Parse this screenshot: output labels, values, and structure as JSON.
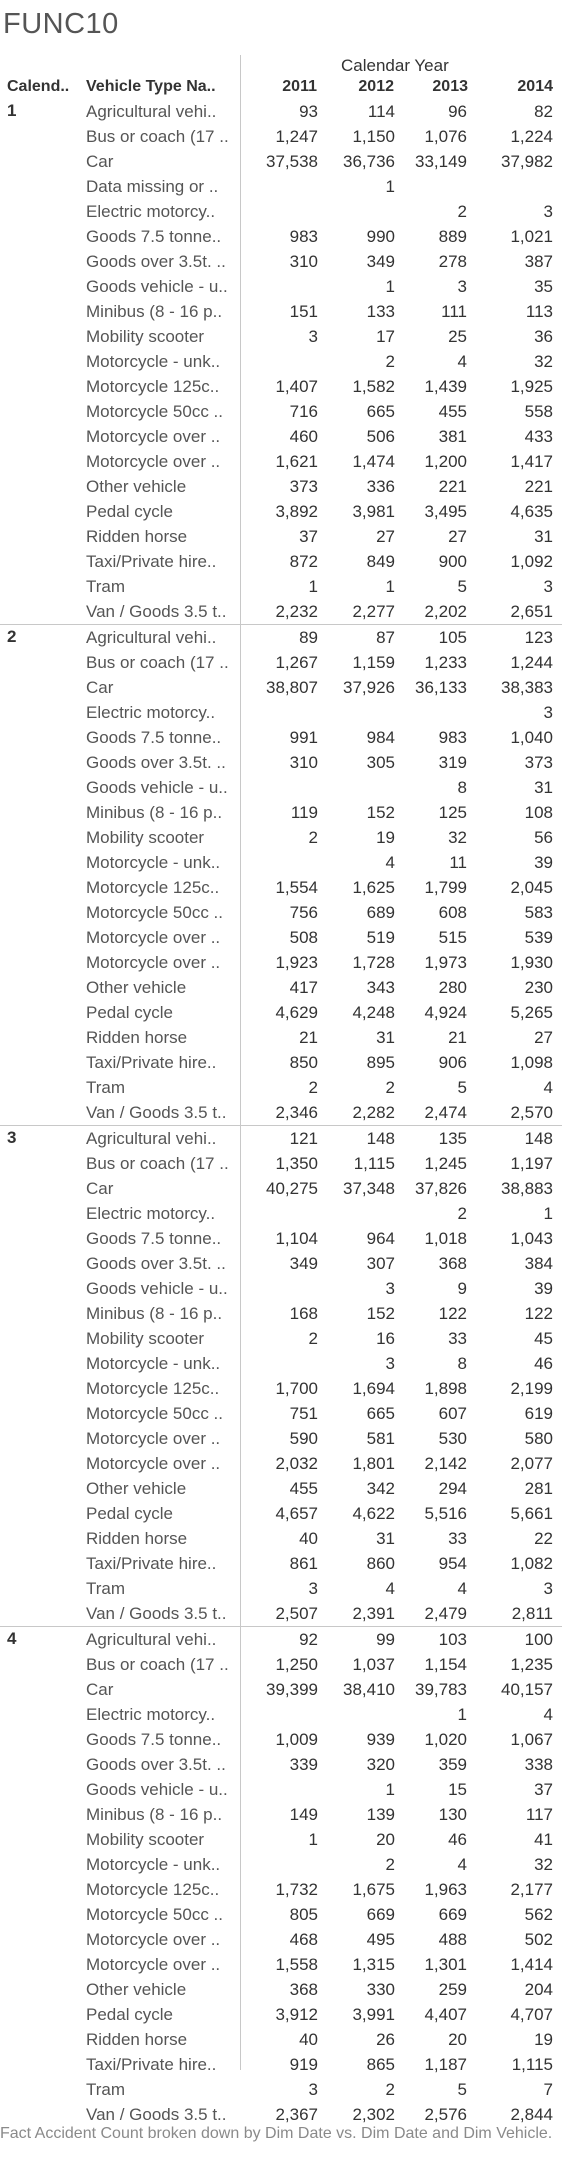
{
  "title": "FUNC10",
  "header": {
    "calendar_year": "Calendar Year",
    "calendar_col": "Calend..",
    "vehicle_col": "Vehicle Type Na..",
    "years": [
      "2011",
      "2012",
      "2013",
      "2014"
    ]
  },
  "groups": [
    {
      "label": "1",
      "rows": [
        {
          "type": "Agricultural vehi..",
          "values": [
            "93",
            "114",
            "96",
            "82"
          ]
        },
        {
          "type": "Bus or coach (17 ..",
          "values": [
            "1,247",
            "1,150",
            "1,076",
            "1,224"
          ]
        },
        {
          "type": "Car",
          "values": [
            "37,538",
            "36,736",
            "33,149",
            "37,982"
          ]
        },
        {
          "type": "Data missing or ..",
          "values": [
            "",
            "1",
            "",
            ""
          ]
        },
        {
          "type": "Electric motorcy..",
          "values": [
            "",
            "",
            "2",
            "3"
          ]
        },
        {
          "type": "Goods 7.5 tonne..",
          "values": [
            "983",
            "990",
            "889",
            "1,021"
          ]
        },
        {
          "type": "Goods over 3.5t. ..",
          "values": [
            "310",
            "349",
            "278",
            "387"
          ]
        },
        {
          "type": "Goods vehicle - u..",
          "values": [
            "",
            "1",
            "3",
            "35"
          ]
        },
        {
          "type": "Minibus (8 - 16 p..",
          "values": [
            "151",
            "133",
            "111",
            "113"
          ]
        },
        {
          "type": "Mobility scooter",
          "values": [
            "3",
            "17",
            "25",
            "36"
          ]
        },
        {
          "type": "Motorcycle - unk..",
          "values": [
            "",
            "2",
            "4",
            "32"
          ]
        },
        {
          "type": "Motorcycle 125c..",
          "values": [
            "1,407",
            "1,582",
            "1,439",
            "1,925"
          ]
        },
        {
          "type": "Motorcycle 50cc ..",
          "values": [
            "716",
            "665",
            "455",
            "558"
          ]
        },
        {
          "type": "Motorcycle over ..",
          "values": [
            "460",
            "506",
            "381",
            "433"
          ]
        },
        {
          "type": "Motorcycle over ..",
          "values": [
            "1,621",
            "1,474",
            "1,200",
            "1,417"
          ]
        },
        {
          "type": "Other vehicle",
          "values": [
            "373",
            "336",
            "221",
            "221"
          ]
        },
        {
          "type": "Pedal cycle",
          "values": [
            "3,892",
            "3,981",
            "3,495",
            "4,635"
          ]
        },
        {
          "type": "Ridden horse",
          "values": [
            "37",
            "27",
            "27",
            "31"
          ]
        },
        {
          "type": "Taxi/Private hire..",
          "values": [
            "872",
            "849",
            "900",
            "1,092"
          ]
        },
        {
          "type": "Tram",
          "values": [
            "1",
            "1",
            "5",
            "3"
          ]
        },
        {
          "type": "Van / Goods 3.5 t..",
          "values": [
            "2,232",
            "2,277",
            "2,202",
            "2,651"
          ]
        }
      ]
    },
    {
      "label": "2",
      "rows": [
        {
          "type": "Agricultural vehi..",
          "values": [
            "89",
            "87",
            "105",
            "123"
          ]
        },
        {
          "type": "Bus or coach (17 ..",
          "values": [
            "1,267",
            "1,159",
            "1,233",
            "1,244"
          ]
        },
        {
          "type": "Car",
          "values": [
            "38,807",
            "37,926",
            "36,133",
            "38,383"
          ]
        },
        {
          "type": "Electric motorcy..",
          "values": [
            "",
            "",
            "",
            "3"
          ]
        },
        {
          "type": "Goods 7.5 tonne..",
          "values": [
            "991",
            "984",
            "983",
            "1,040"
          ]
        },
        {
          "type": "Goods over 3.5t. ..",
          "values": [
            "310",
            "305",
            "319",
            "373"
          ]
        },
        {
          "type": "Goods vehicle - u..",
          "values": [
            "",
            "",
            "8",
            "31"
          ]
        },
        {
          "type": "Minibus (8 - 16 p..",
          "values": [
            "119",
            "152",
            "125",
            "108"
          ]
        },
        {
          "type": "Mobility scooter",
          "values": [
            "2",
            "19",
            "32",
            "56"
          ]
        },
        {
          "type": "Motorcycle - unk..",
          "values": [
            "",
            "4",
            "11",
            "39"
          ]
        },
        {
          "type": "Motorcycle 125c..",
          "values": [
            "1,554",
            "1,625",
            "1,799",
            "2,045"
          ]
        },
        {
          "type": "Motorcycle 50cc ..",
          "values": [
            "756",
            "689",
            "608",
            "583"
          ]
        },
        {
          "type": "Motorcycle over ..",
          "values": [
            "508",
            "519",
            "515",
            "539"
          ]
        },
        {
          "type": "Motorcycle over ..",
          "values": [
            "1,923",
            "1,728",
            "1,973",
            "1,930"
          ]
        },
        {
          "type": "Other vehicle",
          "values": [
            "417",
            "343",
            "280",
            "230"
          ]
        },
        {
          "type": "Pedal cycle",
          "values": [
            "4,629",
            "4,248",
            "4,924",
            "5,265"
          ]
        },
        {
          "type": "Ridden horse",
          "values": [
            "21",
            "31",
            "21",
            "27"
          ]
        },
        {
          "type": "Taxi/Private hire..",
          "values": [
            "850",
            "895",
            "906",
            "1,098"
          ]
        },
        {
          "type": "Tram",
          "values": [
            "2",
            "2",
            "5",
            "4"
          ]
        },
        {
          "type": "Van / Goods 3.5 t..",
          "values": [
            "2,346",
            "2,282",
            "2,474",
            "2,570"
          ]
        }
      ]
    },
    {
      "label": "3",
      "rows": [
        {
          "type": "Agricultural vehi..",
          "values": [
            "121",
            "148",
            "135",
            "148"
          ]
        },
        {
          "type": "Bus or coach (17 ..",
          "values": [
            "1,350",
            "1,115",
            "1,245",
            "1,197"
          ]
        },
        {
          "type": "Car",
          "values": [
            "40,275",
            "37,348",
            "37,826",
            "38,883"
          ]
        },
        {
          "type": "Electric motorcy..",
          "values": [
            "",
            "",
            "2",
            "1"
          ]
        },
        {
          "type": "Goods 7.5 tonne..",
          "values": [
            "1,104",
            "964",
            "1,018",
            "1,043"
          ]
        },
        {
          "type": "Goods over 3.5t. ..",
          "values": [
            "349",
            "307",
            "368",
            "384"
          ]
        },
        {
          "type": "Goods vehicle - u..",
          "values": [
            "",
            "3",
            "9",
            "39"
          ]
        },
        {
          "type": "Minibus (8 - 16 p..",
          "values": [
            "168",
            "152",
            "122",
            "122"
          ]
        },
        {
          "type": "Mobility scooter",
          "values": [
            "2",
            "16",
            "33",
            "45"
          ]
        },
        {
          "type": "Motorcycle - unk..",
          "values": [
            "",
            "3",
            "8",
            "46"
          ]
        },
        {
          "type": "Motorcycle 125c..",
          "values": [
            "1,700",
            "1,694",
            "1,898",
            "2,199"
          ]
        },
        {
          "type": "Motorcycle 50cc ..",
          "values": [
            "751",
            "665",
            "607",
            "619"
          ]
        },
        {
          "type": "Motorcycle over ..",
          "values": [
            "590",
            "581",
            "530",
            "580"
          ]
        },
        {
          "type": "Motorcycle over ..",
          "values": [
            "2,032",
            "1,801",
            "2,142",
            "2,077"
          ]
        },
        {
          "type": "Other vehicle",
          "values": [
            "455",
            "342",
            "294",
            "281"
          ]
        },
        {
          "type": "Pedal cycle",
          "values": [
            "4,657",
            "4,622",
            "5,516",
            "5,661"
          ]
        },
        {
          "type": "Ridden horse",
          "values": [
            "40",
            "31",
            "33",
            "22"
          ]
        },
        {
          "type": "Taxi/Private hire..",
          "values": [
            "861",
            "860",
            "954",
            "1,082"
          ]
        },
        {
          "type": "Tram",
          "values": [
            "3",
            "4",
            "4",
            "3"
          ]
        },
        {
          "type": "Van / Goods 3.5 t..",
          "values": [
            "2,507",
            "2,391",
            "2,479",
            "2,811"
          ]
        }
      ]
    },
    {
      "label": "4",
      "rows": [
        {
          "type": "Agricultural vehi..",
          "values": [
            "92",
            "99",
            "103",
            "100"
          ]
        },
        {
          "type": "Bus or coach (17 ..",
          "values": [
            "1,250",
            "1,037",
            "1,154",
            "1,235"
          ]
        },
        {
          "type": "Car",
          "values": [
            "39,399",
            "38,410",
            "39,783",
            "40,157"
          ]
        },
        {
          "type": "Electric motorcy..",
          "values": [
            "",
            "",
            "1",
            "4"
          ]
        },
        {
          "type": "Goods 7.5 tonne..",
          "values": [
            "1,009",
            "939",
            "1,020",
            "1,067"
          ]
        },
        {
          "type": "Goods over 3.5t. ..",
          "values": [
            "339",
            "320",
            "359",
            "338"
          ]
        },
        {
          "type": "Goods vehicle - u..",
          "values": [
            "",
            "1",
            "15",
            "37"
          ]
        },
        {
          "type": "Minibus (8 - 16 p..",
          "values": [
            "149",
            "139",
            "130",
            "117"
          ]
        },
        {
          "type": "Mobility scooter",
          "values": [
            "1",
            "20",
            "46",
            "41"
          ]
        },
        {
          "type": "Motorcycle - unk..",
          "values": [
            "",
            "2",
            "4",
            "32"
          ]
        },
        {
          "type": "Motorcycle 125c..",
          "values": [
            "1,732",
            "1,675",
            "1,963",
            "2,177"
          ]
        },
        {
          "type": "Motorcycle 50cc ..",
          "values": [
            "805",
            "669",
            "669",
            "562"
          ]
        },
        {
          "type": "Motorcycle over ..",
          "values": [
            "468",
            "495",
            "488",
            "502"
          ]
        },
        {
          "type": "Motorcycle over ..",
          "values": [
            "1,558",
            "1,315",
            "1,301",
            "1,414"
          ]
        },
        {
          "type": "Other vehicle",
          "values": [
            "368",
            "330",
            "259",
            "204"
          ]
        },
        {
          "type": "Pedal cycle",
          "values": [
            "3,912",
            "3,991",
            "4,407",
            "4,707"
          ]
        },
        {
          "type": "Ridden horse",
          "values": [
            "40",
            "26",
            "20",
            "19"
          ]
        },
        {
          "type": "Taxi/Private hire..",
          "values": [
            "919",
            "865",
            "1,187",
            "1,115"
          ]
        },
        {
          "type": "Tram",
          "values": [
            "3",
            "2",
            "5",
            "7"
          ]
        },
        {
          "type": "Van / Goods 3.5 t..",
          "values": [
            "2,367",
            "2,302",
            "2,576",
            "2,844"
          ]
        }
      ]
    }
  ],
  "footer": "Fact Accident Count broken down by Dim Date vs. Dim Date and Dim Vehicle."
}
